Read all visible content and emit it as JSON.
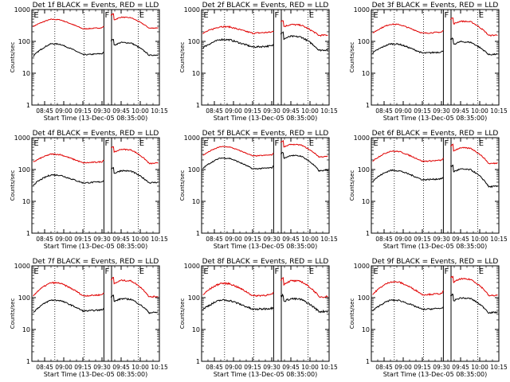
{
  "chart_data": {
    "type": "line",
    "yscale": "log",
    "ylim": [
      1,
      1000
    ],
    "y_ticks": [
      "1",
      "10",
      "100",
      "1000"
    ],
    "ylabel": "Counts/sec",
    "xlabel": "Start Time (13-Dec-05 08:35:00)",
    "x_ticks": [
      "08:45",
      "09:00",
      "09:15",
      "09:30",
      "09:45",
      "10:00",
      "10:15"
    ],
    "x_tick_minutes": [
      10,
      25,
      40,
      55,
      70,
      85,
      100
    ],
    "xlim_minutes": [
      0,
      100
    ],
    "markers": {
      "E_label": "E",
      "F_label": "F"
    },
    "series_colors": {
      "events": "#000000",
      "lld": "#e00000"
    },
    "panels": [
      {
        "title": "Det 1f BLACK = Events, RED = LLD",
        "events": {
          "start": 30,
          "peak1": 80,
          "trough": 40,
          "peak2": 90,
          "end": 38,
          "noise": 0.04
        },
        "lld": {
          "start": 280,
          "peak1": 470,
          "trough": 260,
          "peak2": 560,
          "end": 270,
          "noise": 0.03
        }
      },
      {
        "title": "Det 2f BLACK = Events, RED = LLD",
        "events": {
          "start": 60,
          "peak1": 110,
          "trough": 70,
          "peak2": 140,
          "end": 55,
          "noise": 0.06
        },
        "lld": {
          "start": 170,
          "peak1": 280,
          "trough": 190,
          "peak2": 330,
          "end": 160,
          "noise": 0.05
        }
      },
      {
        "title": "Det 3f BLACK = Events, RED = LLD",
        "events": {
          "start": 40,
          "peak1": 80,
          "trough": 45,
          "peak2": 95,
          "end": 40,
          "noise": 0.05
        },
        "lld": {
          "start": 170,
          "peak1": 330,
          "trough": 190,
          "peak2": 420,
          "end": 160,
          "noise": 0.04
        }
      },
      {
        "title": "Det 4f BLACK = Events, RED = LLD",
        "events": {
          "start": 30,
          "peak1": 65,
          "trough": 40,
          "peak2": 90,
          "end": 40,
          "noise": 0.05
        },
        "lld": {
          "start": 160,
          "peak1": 290,
          "trough": 170,
          "peak2": 420,
          "end": 160,
          "noise": 0.04
        }
      },
      {
        "title": "Det 5f BLACK = Events, RED = LLD",
        "events": {
          "start": 100,
          "peak1": 220,
          "trough": 110,
          "peak2": 270,
          "end": 95,
          "noise": 0.04
        },
        "lld": {
          "start": 260,
          "peak1": 500,
          "trough": 280,
          "peak2": 600,
          "end": 260,
          "noise": 0.03
        }
      },
      {
        "title": "Det 6f BLACK = Events, RED = LLD",
        "events": {
          "start": 40,
          "peak1": 90,
          "trough": 50,
          "peak2": 100,
          "end": 30,
          "noise": 0.05
        },
        "lld": {
          "start": 170,
          "peak1": 360,
          "trough": 190,
          "peak2": 470,
          "end": 160,
          "noise": 0.04
        }
      },
      {
        "title": "Det 7f BLACK = Events, RED = LLD",
        "events": {
          "start": 30,
          "peak1": 80,
          "trough": 40,
          "peak2": 90,
          "end": 35,
          "noise": 0.05
        },
        "lld": {
          "start": 100,
          "peak1": 280,
          "trough": 120,
          "peak2": 340,
          "end": 110,
          "noise": 0.05
        }
      },
      {
        "title": "Det 8f BLACK = Events, RED = LLD",
        "events": {
          "start": 40,
          "peak1": 80,
          "trough": 45,
          "peak2": 90,
          "end": 38,
          "noise": 0.07
        },
        "lld": {
          "start": 110,
          "peak1": 270,
          "trough": 120,
          "peak2": 330,
          "end": 110,
          "noise": 0.06
        }
      },
      {
        "title": "Det 9f BLACK = Events, RED = LLD",
        "events": {
          "start": 35,
          "peak1": 80,
          "trough": 45,
          "peak2": 95,
          "end": 35,
          "noise": 0.05
        },
        "lld": {
          "start": 110,
          "peak1": 300,
          "trough": 130,
          "peak2": 380,
          "end": 120,
          "noise": 0.05
        }
      }
    ]
  }
}
